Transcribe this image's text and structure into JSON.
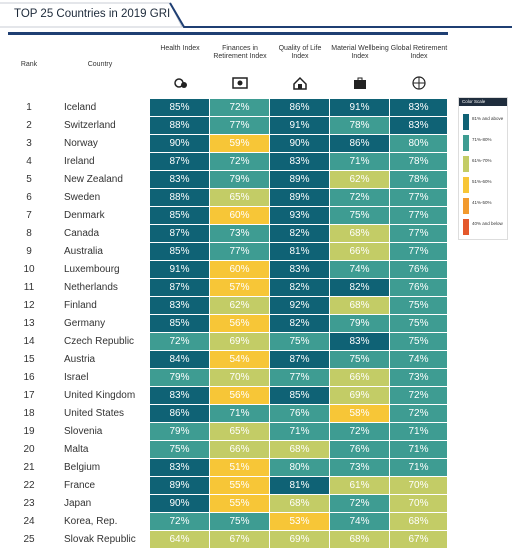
{
  "header": {
    "title": "TOP 25 Countries in 2019 GRI"
  },
  "table": {
    "columns": [
      "Rank",
      "Country",
      "Health Index",
      "Finances in Retirement Index",
      "Quality of Life Index",
      "Material Wellbeing Index",
      "Global Retirement Index"
    ],
    "rows": [
      [
        "1",
        "Iceland",
        "85%",
        "72%",
        "86%",
        "91%",
        "83%"
      ],
      [
        "2",
        "Switzerland",
        "88%",
        "77%",
        "91%",
        "78%",
        "83%"
      ],
      [
        "3",
        "Norway",
        "90%",
        "59%",
        "90%",
        "86%",
        "80%"
      ],
      [
        "4",
        "Ireland",
        "87%",
        "72%",
        "83%",
        "71%",
        "78%"
      ],
      [
        "5",
        "New Zealand",
        "83%",
        "79%",
        "89%",
        "62%",
        "78%"
      ],
      [
        "6",
        "Sweden",
        "88%",
        "65%",
        "89%",
        "72%",
        "77%"
      ],
      [
        "7",
        "Denmark",
        "85%",
        "60%",
        "93%",
        "75%",
        "77%"
      ],
      [
        "8",
        "Canada",
        "87%",
        "73%",
        "82%",
        "68%",
        "77%"
      ],
      [
        "9",
        "Australia",
        "85%",
        "77%",
        "81%",
        "66%",
        "77%"
      ],
      [
        "10",
        "Luxembourg",
        "91%",
        "60%",
        "83%",
        "74%",
        "76%"
      ],
      [
        "11",
        "Netherlands",
        "87%",
        "57%",
        "82%",
        "82%",
        "76%"
      ],
      [
        "12",
        "Finland",
        "83%",
        "62%",
        "92%",
        "68%",
        "75%"
      ],
      [
        "13",
        "Germany",
        "85%",
        "56%",
        "82%",
        "79%",
        "75%"
      ],
      [
        "14",
        "Czech Republic",
        "72%",
        "69%",
        "75%",
        "83%",
        "75%"
      ],
      [
        "15",
        "Austria",
        "84%",
        "54%",
        "87%",
        "75%",
        "74%"
      ],
      [
        "16",
        "Israel",
        "79%",
        "70%",
        "77%",
        "66%",
        "73%"
      ],
      [
        "17",
        "United Kingdom",
        "83%",
        "56%",
        "85%",
        "69%",
        "72%"
      ],
      [
        "18",
        "United States",
        "86%",
        "71%",
        "76%",
        "58%",
        "72%"
      ],
      [
        "19",
        "Slovenia",
        "79%",
        "65%",
        "71%",
        "72%",
        "71%"
      ],
      [
        "20",
        "Malta",
        "75%",
        "66%",
        "68%",
        "76%",
        "71%"
      ],
      [
        "21",
        "Belgium",
        "83%",
        "51%",
        "80%",
        "73%",
        "71%"
      ],
      [
        "22",
        "France",
        "89%",
        "55%",
        "81%",
        "61%",
        "70%"
      ],
      [
        "23",
        "Japan",
        "90%",
        "55%",
        "68%",
        "72%",
        "70%"
      ],
      [
        "24",
        "Korea, Rep.",
        "72%",
        "75%",
        "53%",
        "74%",
        "68%"
      ],
      [
        "25",
        "Slovak Republic",
        "64%",
        "67%",
        "69%",
        "68%",
        "67%"
      ]
    ]
  },
  "color_scale": {
    "title": "Color Scale",
    "items": [
      {
        "label": "81% and above",
        "color": "#0f6275"
      },
      {
        "label": "71%-80%",
        "color": "#3e9c92"
      },
      {
        "label": "61%-70%",
        "color": "#c3cc66"
      },
      {
        "label": "51%-60%",
        "color": "#f7c637"
      },
      {
        "label": "41%-50%",
        "color": "#f29a2e"
      },
      {
        "label": "40% and below",
        "color": "#e4582b"
      }
    ]
  }
}
